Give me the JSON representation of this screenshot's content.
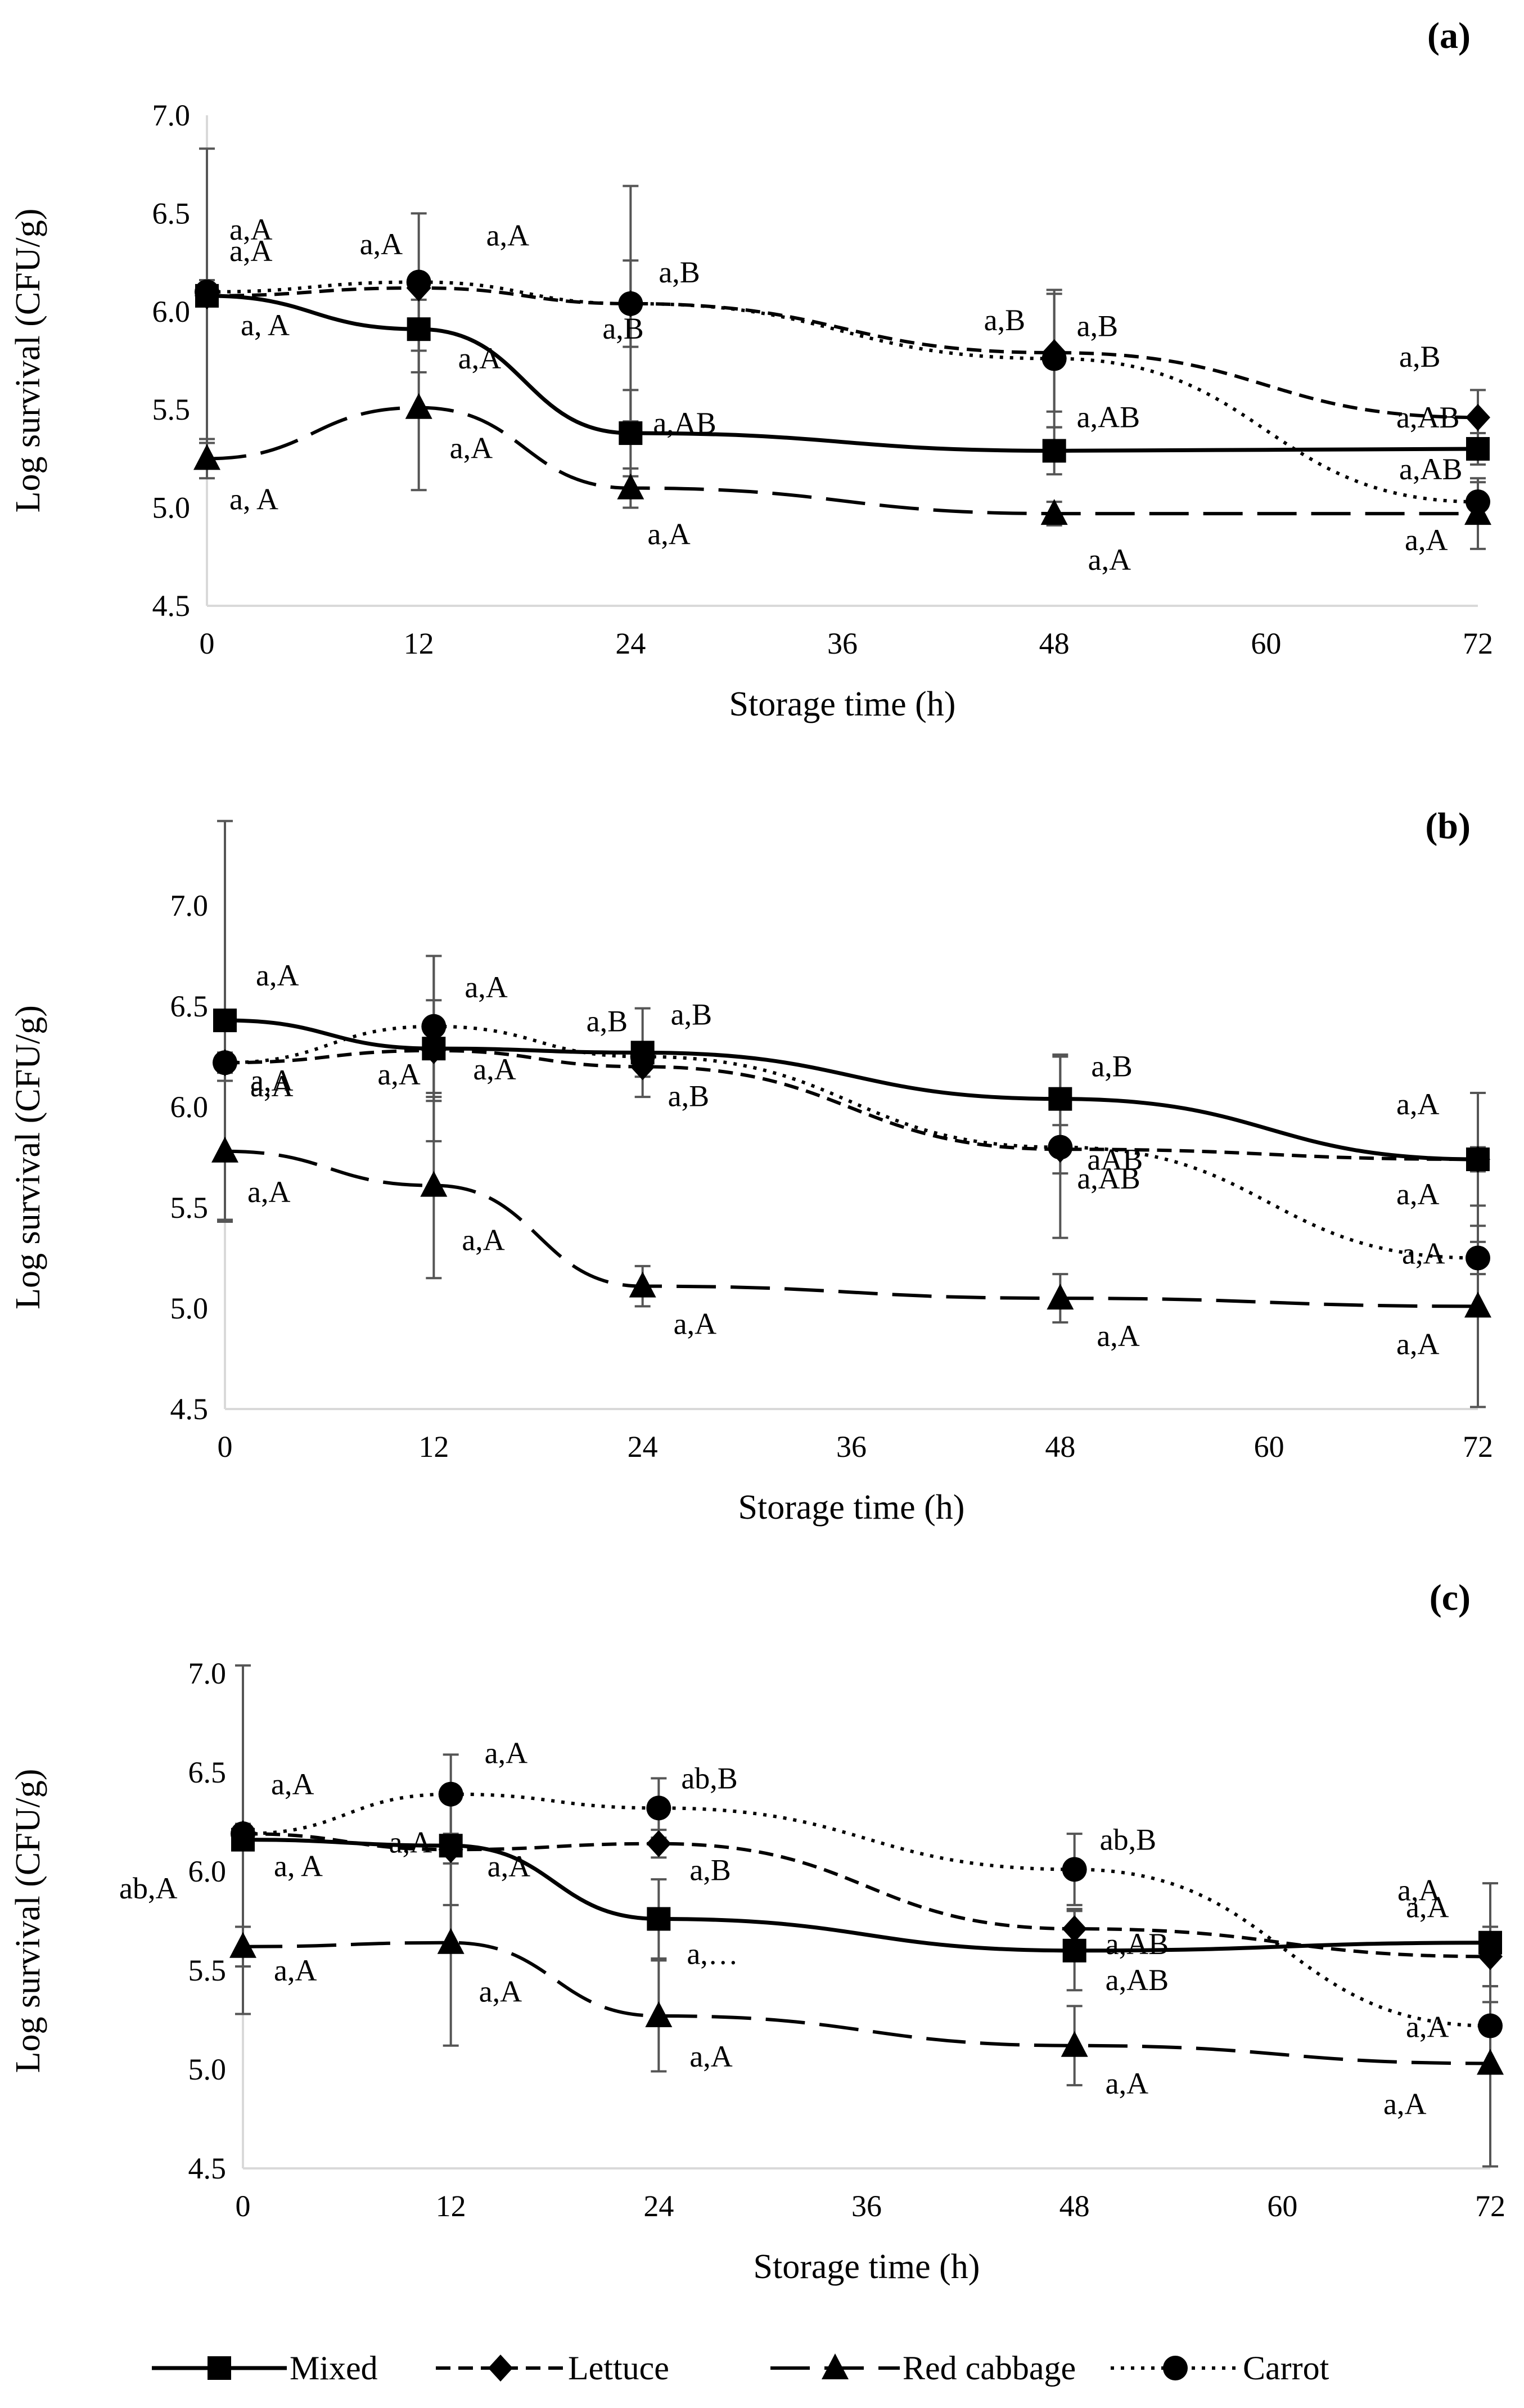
{
  "figure": {
    "legend": [
      {
        "key": "mixed",
        "label": "Mixed",
        "marker": "square-icon"
      },
      {
        "key": "lettuce",
        "label": "Lettuce",
        "marker": "diamond-icon"
      },
      {
        "key": "red_cabbage",
        "label": "Red cabbage",
        "marker": "triangle-icon"
      },
      {
        "key": "carrot",
        "label": "Carrot",
        "marker": "circle-icon"
      }
    ],
    "colors": {
      "series": "#000000",
      "errorbar": "#555555",
      "axis": "#d9d9d9"
    }
  },
  "chart_data": [
    {
      "type": "line",
      "panel": "(a)",
      "xlabel": "Storage time (h)",
      "ylabel": "Log survival (CFU/g)",
      "xlim": [
        0,
        72
      ],
      "ylim": [
        4.5,
        7.0
      ],
      "xticks": [
        "0",
        "12",
        "24",
        "36",
        "48",
        "60",
        "72"
      ],
      "yticks": [
        "4.5",
        "5.0",
        "5.5",
        "6.0",
        "6.5",
        "7.0"
      ],
      "x": [
        0,
        12,
        24,
        48,
        72
      ],
      "grid": false,
      "series": [
        {
          "key": "mixed",
          "name": "Mixed",
          "values": [
            6.08,
            5.91,
            5.38,
            5.29,
            5.3
          ],
          "errors": [
            0.75,
            0.22,
            0.22,
            0.12,
            0.08
          ],
          "labels": [
            "a, A",
            "a,A",
            "a,AB",
            "a,AB",
            "a,AB"
          ]
        },
        {
          "key": "lettuce",
          "name": "Lettuce",
          "values": [
            6.08,
            6.12,
            6.04,
            5.79,
            5.46
          ],
          "errors": [
            0.05,
            0.06,
            0.22,
            0.3,
            0.14
          ],
          "labels": [
            "a,A",
            "a,A",
            "a,B",
            "a,B",
            "a,B"
          ]
        },
        {
          "key": "red_cabbage",
          "name": "Red cabbage",
          "values": [
            5.25,
            5.51,
            5.1,
            4.97,
            4.97
          ],
          "errors": [
            0.1,
            0.42,
            0.1,
            0.06,
            0.18
          ],
          "labels": [
            "a, A",
            "a,A",
            "a,A",
            "a,A",
            "a,A"
          ]
        },
        {
          "key": "carrot",
          "name": "Carrot",
          "values": [
            6.1,
            6.15,
            6.04,
            5.76,
            5.03
          ],
          "errors": [
            0.06,
            0.35,
            0.6,
            0.35,
            0.1
          ],
          "labels": [
            "a,A",
            "a,A",
            "a,B",
            "a,B",
            "a,AB"
          ]
        }
      ]
    },
    {
      "type": "line",
      "panel": "(b)",
      "xlabel": "Storage time (h)",
      "ylabel": "Log survival (CFU/g)",
      "xlim": [
        0,
        72
      ],
      "ylim": [
        4.5,
        7.0
      ],
      "xticks": [
        "0",
        "12",
        "24",
        "36",
        "48",
        "60",
        "72"
      ],
      "yticks": [
        "4.5",
        "5.0",
        "5.5",
        "6.0",
        "6.5",
        "7.0"
      ],
      "x": [
        0,
        12,
        24,
        48,
        72
      ],
      "grid": false,
      "series": [
        {
          "key": "mixed",
          "name": "Mixed",
          "values": [
            6.43,
            6.29,
            6.27,
            6.04,
            5.74
          ],
          "errors": [
            0.99,
            0.46,
            0.22,
            0.22,
            0.33
          ],
          "labels": [
            "a,A",
            "a,A",
            "a,B",
            "a,B",
            "a,A"
          ]
        },
        {
          "key": "lettuce",
          "name": "Lettuce",
          "values": [
            6.22,
            6.28,
            6.2,
            5.79,
            5.74
          ],
          "errors": [
            0.05,
            0.25,
            0.05,
            0.12,
            0.06
          ],
          "labels": [
            "a,A",
            "a,A",
            "a,B",
            "a,AB",
            "a,A"
          ]
        },
        {
          "key": "red_cabbage",
          "name": "Red cabbage",
          "values": [
            5.78,
            5.61,
            5.11,
            5.05,
            5.01
          ],
          "errors": [
            0.35,
            0.46,
            0.1,
            0.12,
            0.5
          ],
          "labels": [
            "a,A",
            "a,A",
            "a,A",
            "a,A",
            "a,A"
          ]
        },
        {
          "key": "carrot",
          "name": "Carrot",
          "values": [
            6.22,
            6.4,
            6.25,
            5.8,
            5.25
          ],
          "errors": [
            0.05,
            0.35,
            0.05,
            0.45,
            0.08
          ],
          "labels": [
            "a,A",
            "a,A",
            "a,B",
            "aAB",
            "a,A"
          ]
        }
      ]
    },
    {
      "type": "line",
      "panel": "(c)",
      "xlabel": "Storage time (h)",
      "ylabel": "Log survival (CFU/g)",
      "xlim": [
        0,
        72
      ],
      "ylim": [
        4.5,
        7.0
      ],
      "xticks": [
        "0",
        "12",
        "24",
        "36",
        "48",
        "60",
        "72"
      ],
      "yticks": [
        "4.5",
        "5.0",
        "5.5",
        "6.0",
        "6.5",
        "7.0"
      ],
      "x": [
        0,
        12,
        24,
        48,
        72
      ],
      "grid": false,
      "series": [
        {
          "key": "mixed",
          "name": "Mixed",
          "values": [
            6.16,
            6.13,
            5.76,
            5.6,
            5.64
          ],
          "errors": [
            0.88,
            0.3,
            0.2,
            0.2,
            0.3
          ],
          "labels": [
            "a, A",
            "a,A",
            "a,…",
            "a,AB",
            "a,A"
          ]
        },
        {
          "key": "lettuce",
          "name": "Lettuce",
          "values": [
            6.19,
            6.11,
            6.14,
            5.71,
            5.57
          ],
          "errors": [
            0.05,
            0.07,
            0.07,
            0.1,
            0.15
          ],
          "labels": [
            "a,A",
            "a,A",
            "a,B",
            "a,AB",
            "a,A"
          ]
        },
        {
          "key": "red_cabbage",
          "name": "Red cabbage",
          "values": [
            5.62,
            5.64,
            5.27,
            5.12,
            5.03
          ],
          "errors": [
            0.1,
            0.52,
            0.28,
            0.2,
            0.52
          ],
          "labels": [
            "a,A",
            "a,A",
            "a,A",
            "a,A",
            "a,A"
          ]
        },
        {
          "key": "carrot",
          "name": "Carrot",
          "values": [
            6.19,
            6.39,
            6.32,
            6.01,
            5.22
          ],
          "errors": [
            0.05,
            0.2,
            0.15,
            0.18,
            0.2
          ],
          "labels": [
            "ab,A",
            "a,A",
            "ab,B",
            "ab,B",
            "a,A"
          ]
        }
      ]
    }
  ]
}
